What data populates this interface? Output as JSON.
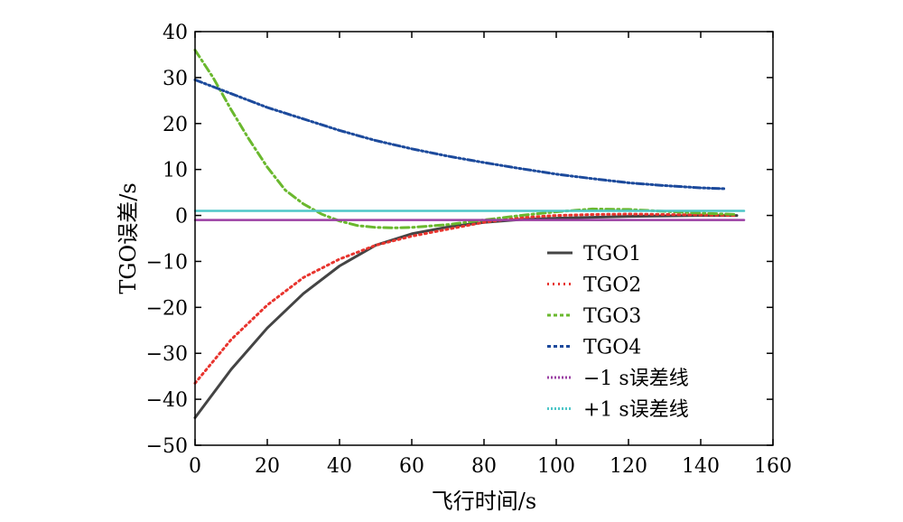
{
  "chart_data": {
    "type": "line",
    "xlabel": "飞行时间/s",
    "ylabel": "TGO误差/s",
    "xlim": [
      0,
      160
    ],
    "ylim": [
      -50,
      40
    ],
    "xticks": [
      0,
      20,
      40,
      60,
      80,
      100,
      120,
      140,
      160
    ],
    "yticks": [
      -50,
      -40,
      -30,
      -20,
      -10,
      0,
      10,
      20,
      30,
      40
    ],
    "xtick_labels": [
      "0",
      "20",
      "40",
      "60",
      "80",
      "100",
      "120",
      "140",
      "160"
    ],
    "ytick_labels": [
      "−50",
      "−40",
      "−30",
      "−20",
      "−10",
      "0",
      "10",
      "20",
      "30",
      "40"
    ],
    "grid": false,
    "legend_position": "lower-right",
    "series": [
      {
        "name": "TGO1",
        "color": "#444444",
        "style": "solid",
        "x": [
          0,
          10,
          20,
          30,
          40,
          50,
          60,
          70,
          80,
          90,
          100,
          110,
          120,
          130,
          140,
          150
        ],
        "y": [
          -44,
          -33.5,
          -24.5,
          -17,
          -11,
          -6.5,
          -4,
          -2.5,
          -1.5,
          -0.9,
          -0.6,
          -0.4,
          -0.2,
          -0.1,
          0,
          0
        ]
      },
      {
        "name": "TGO2",
        "color": "#e8342e",
        "style": "dotted",
        "x": [
          0,
          10,
          20,
          30,
          40,
          50,
          60,
          70,
          80,
          90,
          100,
          110,
          120,
          130,
          140,
          150
        ],
        "y": [
          -36.5,
          -27,
          -19.5,
          -13.5,
          -9.5,
          -6.5,
          -4.5,
          -3,
          -1.5,
          -0.5,
          0,
          0.2,
          0.3,
          0.2,
          0.1,
          0
        ]
      },
      {
        "name": "TGO3",
        "color": "#6ab82e",
        "style": "dashdot",
        "x": [
          0,
          5,
          10,
          15,
          20,
          25,
          30,
          35,
          40,
          45,
          50,
          55,
          60,
          70,
          80,
          90,
          100,
          110,
          120,
          130,
          140,
          150
        ],
        "y": [
          36,
          30,
          23,
          16.5,
          10.5,
          5.5,
          2.5,
          0.3,
          -1.2,
          -2.2,
          -2.6,
          -2.7,
          -2.6,
          -2,
          -1,
          0,
          0.8,
          1.4,
          1.3,
          0.9,
          0.5,
          0.2
        ]
      },
      {
        "name": "TGO4",
        "color": "#1c4a9c",
        "style": "dashdotdot",
        "x": [
          0,
          10,
          20,
          30,
          40,
          50,
          60,
          70,
          80,
          90,
          100,
          110,
          120,
          130,
          140,
          147
        ],
        "y": [
          29.5,
          26.5,
          23.5,
          21,
          18.5,
          16.3,
          14.5,
          12.9,
          11.5,
          10.2,
          9,
          8,
          7.1,
          6.5,
          6,
          5.8
        ]
      },
      {
        "name": "−1 s误差线",
        "color": "#9b3fa3",
        "style": "solid",
        "x": [
          0,
          152
        ],
        "y": [
          -1,
          -1
        ]
      },
      {
        "name": "+1 s误差线",
        "color": "#4ec6c8",
        "style": "solid",
        "x": [
          0,
          152
        ],
        "y": [
          1,
          1
        ]
      }
    ]
  }
}
